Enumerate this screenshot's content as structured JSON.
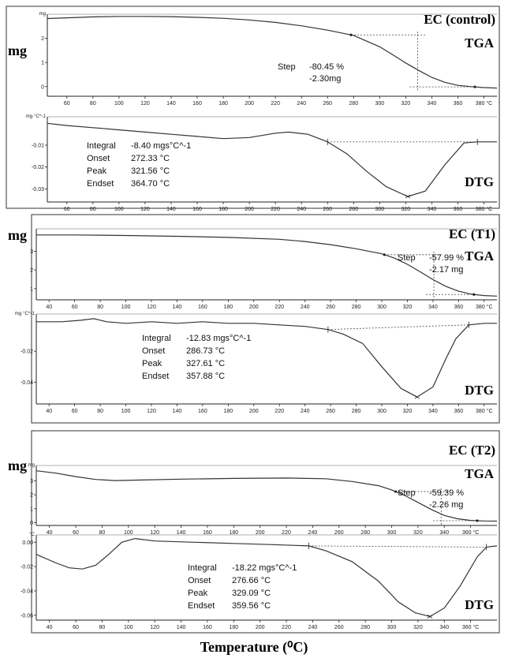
{
  "x_axis_title": "Temperature (⁰C)",
  "chart_data": [
    {
      "type": "line",
      "name": "EC (control)",
      "y_label": "mg",
      "tga": {
        "title": "TGA",
        "unit_label": "mg",
        "x_ticks": [
          60,
          80,
          100,
          120,
          140,
          160,
          180,
          200,
          220,
          240,
          260,
          280,
          300,
          320,
          340,
          360,
          380
        ],
        "x_tick_labels": [
          "60",
          "80",
          "100",
          "120",
          "140",
          "160",
          "180",
          "200",
          "220",
          "240",
          "260",
          "280",
          "300",
          "320",
          "340",
          "360",
          "380 °C"
        ],
        "y_ticks": [
          0,
          1,
          2
        ],
        "xlim": [
          45,
          390
        ],
        "ylim": [
          -0.4,
          3.0
        ],
        "x": [
          45,
          60,
          80,
          100,
          120,
          140,
          160,
          180,
          200,
          220,
          240,
          260,
          280,
          300,
          310,
          320,
          330,
          340,
          350,
          360,
          370,
          380,
          390
        ],
        "y": [
          2.82,
          2.85,
          2.89,
          2.91,
          2.91,
          2.9,
          2.87,
          2.83,
          2.76,
          2.66,
          2.52,
          2.34,
          2.12,
          1.65,
          1.32,
          0.98,
          0.67,
          0.38,
          0.18,
          0.05,
          0.0,
          -0.04,
          -0.06
        ],
        "step_start": 278,
        "step_end": 373,
        "step_label": "Step",
        "step_percent": "-80.45 %",
        "step_mass": "-2.30mg"
      },
      "dtg": {
        "title": "DTG",
        "unit_label": "mg·°C^-1",
        "x_ticks": [
          60,
          80,
          100,
          120,
          140,
          160,
          180,
          200,
          220,
          240,
          260,
          280,
          300,
          320,
          340,
          360,
          380
        ],
        "x_tick_labels": [
          "60",
          "80",
          "100",
          "120",
          "140",
          "160",
          "180",
          "200",
          "220",
          "240",
          "260",
          "280",
          "300",
          "320",
          "340",
          "360",
          "380 °C"
        ],
        "y_ticks": [
          -0.01,
          -0.02,
          -0.03
        ],
        "xlim": [
          45,
          390
        ],
        "ylim": [
          -0.036,
          0.003
        ],
        "x": [
          45,
          60,
          80,
          100,
          120,
          140,
          160,
          180,
          200,
          220,
          230,
          245,
          260,
          275,
          290,
          305,
          321.56,
          335,
          350,
          364.7,
          375,
          390
        ],
        "y": [
          0.0,
          -0.001,
          -0.002,
          -0.003,
          -0.004,
          -0.005,
          -0.006,
          -0.007,
          -0.0065,
          -0.0045,
          -0.004,
          -0.005,
          -0.0085,
          -0.014,
          -0.022,
          -0.029,
          -0.0335,
          -0.031,
          -0.019,
          -0.009,
          -0.0085,
          -0.0085
        ],
        "integral_label": "Integral",
        "integral": "-8.40 mgs°C^-1",
        "onset_label": "Onset",
        "onset": "272.33 °C",
        "peak_label": "Peak",
        "peak": "321.56 °C",
        "endset_label": "Endset",
        "endset": "364.70 °C",
        "baseline_start": 260,
        "baseline_end": 375
      }
    },
    {
      "type": "line",
      "name": "EC (T1)",
      "y_label": "mg",
      "tga": {
        "title": "TGA",
        "unit_label": "",
        "x_ticks": [
          40,
          60,
          80,
          100,
          120,
          140,
          160,
          180,
          200,
          220,
          240,
          260,
          280,
          300,
          320,
          340,
          360,
          380
        ],
        "x_tick_labels": [
          "40",
          "60",
          "80",
          "100",
          "120",
          "140",
          "160",
          "180",
          "200",
          "220",
          "240",
          "260",
          "280",
          "300",
          "320",
          "340",
          "360",
          "380 °C"
        ],
        "y_ticks": [
          1,
          2,
          3
        ],
        "xlim": [
          30,
          390
        ],
        "ylim": [
          0.4,
          4.2
        ],
        "x": [
          30,
          60,
          100,
          140,
          180,
          220,
          240,
          260,
          280,
          300,
          310,
          320,
          330,
          340,
          350,
          360,
          370,
          380,
          390
        ],
        "y": [
          3.87,
          3.87,
          3.84,
          3.8,
          3.74,
          3.64,
          3.52,
          3.35,
          3.13,
          2.86,
          2.63,
          2.3,
          1.9,
          1.48,
          1.12,
          0.86,
          0.7,
          0.63,
          0.6
        ],
        "step_start": 302,
        "step_end": 372,
        "step_label": "Step",
        "step_percent": "-57.99 %",
        "step_mass": "-2.17 mg"
      },
      "dtg": {
        "title": "DTG",
        "unit_label": "mg·°C^-1",
        "x_ticks": [
          40,
          60,
          80,
          100,
          120,
          140,
          160,
          180,
          200,
          220,
          240,
          260,
          280,
          300,
          320,
          340,
          360,
          380
        ],
        "x_tick_labels": [
          "40",
          "60",
          "80",
          "100",
          "120",
          "140",
          "160",
          "180",
          "200",
          "220",
          "240",
          "260",
          "280",
          "300",
          "320",
          "340",
          "360",
          "380 °C"
        ],
        "y_ticks": [
          -0.02,
          -0.04
        ],
        "xlim": [
          30,
          390
        ],
        "ylim": [
          -0.054,
          0.004
        ],
        "x": [
          30,
          50,
          65,
          75,
          85,
          100,
          120,
          140,
          160,
          180,
          200,
          220,
          240,
          258,
          270,
          285,
          300,
          315,
          327.61,
          340,
          350,
          357.88,
          368,
          380,
          390
        ],
        "y": [
          -0.001,
          -0.001,
          0.0,
          0.001,
          -0.001,
          -0.002,
          -0.001,
          -0.002,
          -0.001,
          -0.002,
          -0.002,
          -0.003,
          -0.004,
          -0.006,
          -0.009,
          -0.015,
          -0.03,
          -0.044,
          -0.0495,
          -0.043,
          -0.025,
          -0.012,
          -0.003,
          -0.002,
          -0.002
        ],
        "integral_label": "Integral",
        "integral": "-12.83 mgs°C^-1",
        "onset_label": "Onset",
        "onset": "286.73 °C",
        "peak_label": "Peak",
        "peak": "327.61 °C",
        "endset_label": "Endset",
        "endset": "357.88 °C",
        "baseline_start": 258,
        "baseline_end": 368
      }
    },
    {
      "type": "line",
      "name": "EC (T2)",
      "y_label": "mg",
      "tga": {
        "title": "TGA",
        "unit_label": "mg",
        "x_ticks": [
          40,
          60,
          80,
          100,
          120,
          140,
          160,
          180,
          200,
          220,
          240,
          260,
          280,
          300,
          320,
          340,
          360
        ],
        "x_tick_labels": [
          "40",
          "60",
          "80",
          "100",
          "120",
          "140",
          "160",
          "180",
          "200",
          "220",
          "240",
          "260",
          "280",
          "300",
          "320",
          "340",
          "360 °C"
        ],
        "y_ticks": [
          0,
          1,
          2,
          3
        ],
        "xlim": [
          30,
          380
        ],
        "ylim": [
          -0.2,
          4.1
        ],
        "x": [
          30,
          45,
          60,
          75,
          90,
          110,
          140,
          180,
          220,
          250,
          270,
          290,
          300,
          310,
          320,
          330,
          340,
          350,
          360,
          370,
          380
        ],
        "y": [
          3.72,
          3.55,
          3.3,
          3.1,
          3.02,
          3.06,
          3.12,
          3.17,
          3.2,
          3.15,
          2.95,
          2.65,
          2.35,
          1.95,
          1.45,
          0.95,
          0.52,
          0.28,
          0.16,
          0.12,
          0.11
        ],
        "step_start": 303,
        "step_end": 365,
        "step_label": "Step",
        "step_percent": "-59.39 %",
        "step_mass": "-2.26 mg"
      },
      "dtg": {
        "title": "DTG",
        "unit_label": "°C",
        "x_ticks": [
          40,
          60,
          80,
          100,
          120,
          140,
          160,
          180,
          200,
          220,
          240,
          260,
          280,
          300,
          320,
          340,
          360
        ],
        "x_tick_labels": [
          "40",
          "60",
          "80",
          "100",
          "120",
          "140",
          "160",
          "180",
          "200",
          "220",
          "240",
          "260",
          "280",
          "300",
          "320",
          "340",
          "360 °C"
        ],
        "y_ticks": [
          0.0,
          -0.02,
          -0.04,
          -0.06
        ],
        "y_tick_labels": [
          "0.00",
          "-0.02",
          "-0.04",
          "-0.06"
        ],
        "xlim": [
          30,
          380
        ],
        "ylim": [
          -0.064,
          0.006
        ],
        "x": [
          30,
          45,
          55,
          65,
          75,
          85,
          95,
          105,
          120,
          150,
          180,
          210,
          237,
          250,
          270,
          290,
          305,
          318,
          329.09,
          340,
          352,
          365,
          372,
          380
        ],
        "y": [
          -0.01,
          -0.017,
          -0.021,
          -0.022,
          -0.019,
          -0.01,
          0.0,
          0.003,
          0.001,
          0.0,
          -0.001,
          -0.002,
          -0.003,
          -0.007,
          -0.016,
          -0.032,
          -0.049,
          -0.058,
          -0.061,
          -0.054,
          -0.036,
          -0.012,
          -0.004,
          -0.003
        ],
        "integral_label": "Integral",
        "integral": "-18.22 mgs°C^-1",
        "onset_label": "Onset",
        "onset": "276.66 °C",
        "peak_label": "Peak",
        "peak": "329.09 °C",
        "endset_label": "Endset",
        "endset": "359.56 °C",
        "baseline_start": 237,
        "baseline_end": 372
      }
    }
  ]
}
